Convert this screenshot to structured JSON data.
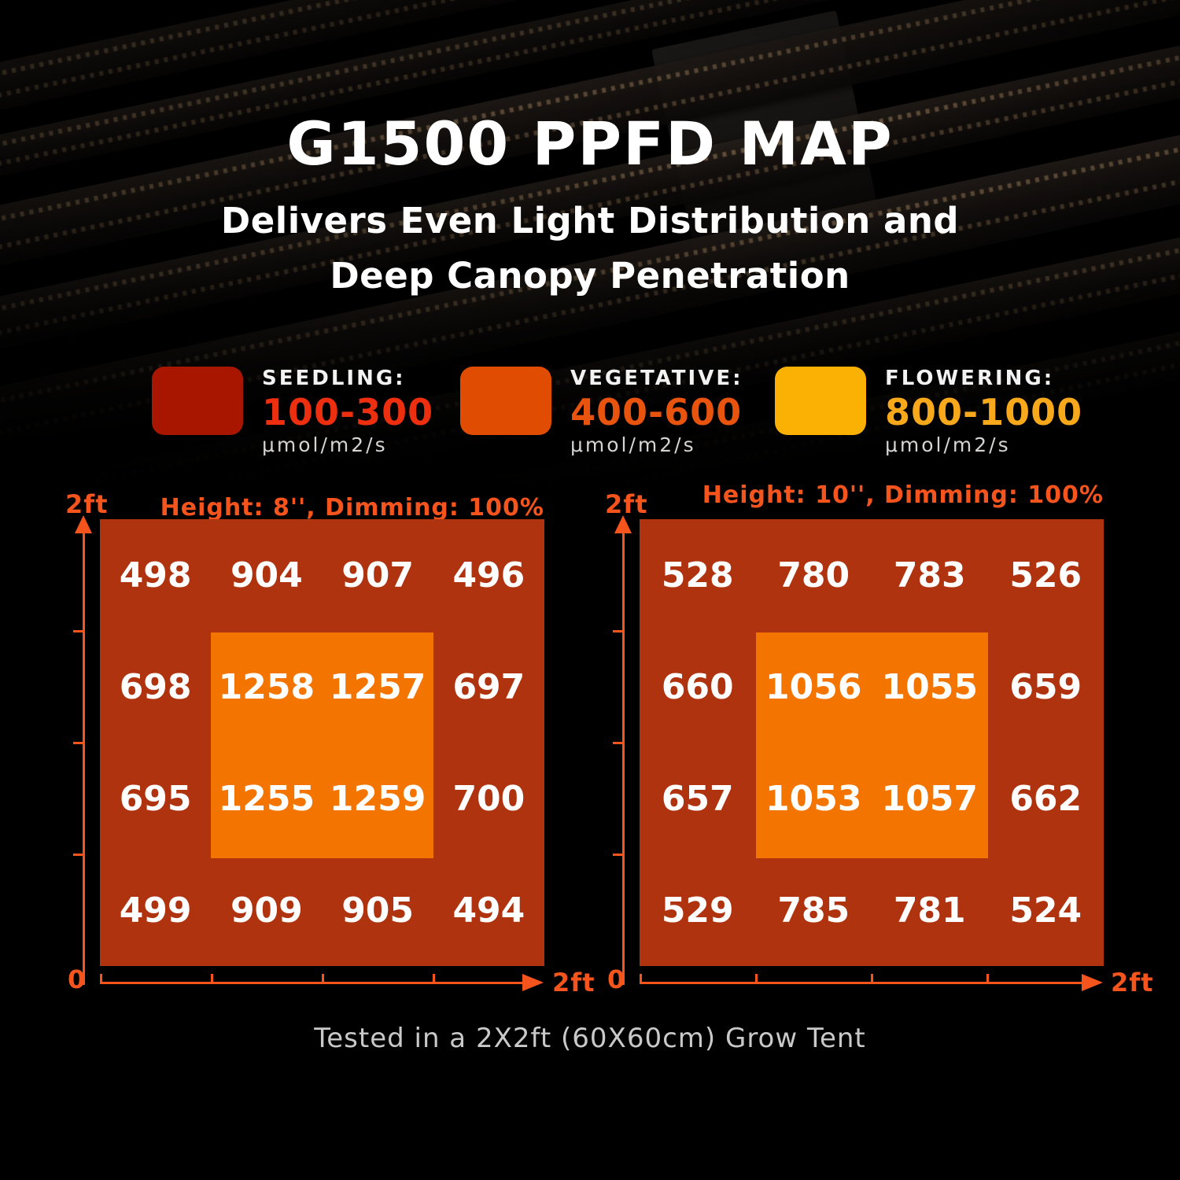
{
  "page": {
    "title": "G1500 PPFD MAP",
    "subtitle": [
      "Delivers Even Light Distribution and",
      "Deep Canopy Penetration"
    ],
    "caption": "Tested in a 2X2ft (60X60cm) Grow Tent"
  },
  "legend": {
    "items": [
      {
        "label": "SEEDLING:",
        "range": "100-300",
        "unit": "μmol/m2/s",
        "swatch_color": "#A81600",
        "range_color": "#ED2F10"
      },
      {
        "label": "VEGETATIVE:",
        "range": "400-600",
        "unit": "μmol/m2/s",
        "swatch_color": "#E04D02",
        "range_color": "#E8540D"
      },
      {
        "label": "FLOWERING:",
        "range": "800-1000",
        "unit": "μmol/m2/s",
        "swatch_color": "#FBB004",
        "range_color": "#F7A81B"
      }
    ]
  },
  "chart_data": [
    {
      "type": "heatmap",
      "title": "Height: 8'', Dimming: 100%",
      "x_axis_label": "2ft",
      "y_axis_label": "2ft",
      "origin_label": "0",
      "x_range_ft": [
        0,
        2
      ],
      "y_range_ft": [
        0,
        2
      ],
      "rows": 4,
      "cols": 4,
      "values": [
        [
          498,
          904,
          907,
          496
        ],
        [
          698,
          1258,
          1257,
          697
        ],
        [
          695,
          1255,
          1259,
          700
        ],
        [
          499,
          909,
          905,
          494
        ]
      ],
      "outer_color": "#B0330F",
      "center_color": "#F37500",
      "axis_color": "#F5541D"
    },
    {
      "type": "heatmap",
      "title": "Height: 10'', Dimming: 100%",
      "x_axis_label": "2ft",
      "y_axis_label": "2ft",
      "origin_label": "0",
      "x_range_ft": [
        0,
        2
      ],
      "y_range_ft": [
        0,
        2
      ],
      "rows": 4,
      "cols": 4,
      "values": [
        [
          528,
          780,
          783,
          526
        ],
        [
          660,
          1056,
          1055,
          659
        ],
        [
          657,
          1053,
          1057,
          662
        ],
        [
          529,
          785,
          781,
          524
        ]
      ],
      "outer_color": "#B0330F",
      "center_color": "#F37500",
      "axis_color": "#F5541D"
    }
  ]
}
